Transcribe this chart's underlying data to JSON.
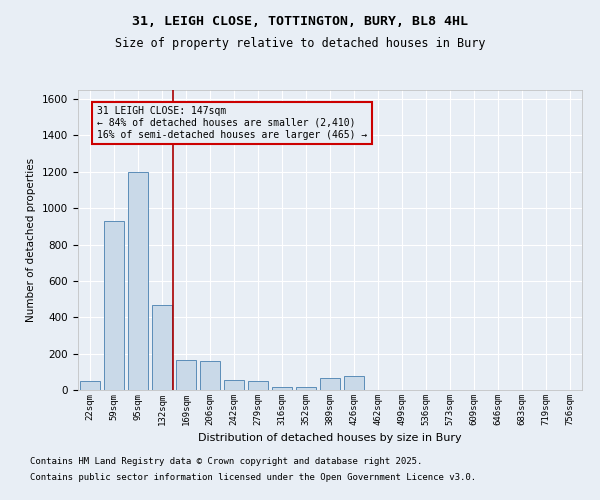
{
  "title1": "31, LEIGH CLOSE, TOTTINGTON, BURY, BL8 4HL",
  "title2": "Size of property relative to detached houses in Bury",
  "xlabel": "Distribution of detached houses by size in Bury",
  "ylabel": "Number of detached properties",
  "bar_color": "#c9d9e8",
  "bar_edge_color": "#5b8db8",
  "annotation_line_color": "#aa0000",
  "annotation_box_color": "#cc0000",
  "annotation_text": "31 LEIGH CLOSE: 147sqm\n← 84% of detached houses are smaller (2,410)\n16% of semi-detached houses are larger (465) →",
  "categories": [
    "22sqm",
    "59sqm",
    "95sqm",
    "132sqm",
    "169sqm",
    "206sqm",
    "242sqm",
    "279sqm",
    "316sqm",
    "352sqm",
    "389sqm",
    "426sqm",
    "462sqm",
    "499sqm",
    "536sqm",
    "573sqm",
    "609sqm",
    "646sqm",
    "683sqm",
    "719sqm",
    "756sqm"
  ],
  "values": [
    50,
    930,
    1200,
    465,
    165,
    160,
    55,
    50,
    15,
    15,
    65,
    75,
    2,
    2,
    2,
    2,
    2,
    2,
    2,
    2,
    2
  ],
  "ylim": [
    0,
    1650
  ],
  "yticks": [
    0,
    200,
    400,
    600,
    800,
    1000,
    1200,
    1400,
    1600
  ],
  "background_color": "#e8eef5",
  "footnote1": "Contains HM Land Registry data © Crown copyright and database right 2025.",
  "footnote2": "Contains public sector information licensed under the Open Government Licence v3.0."
}
